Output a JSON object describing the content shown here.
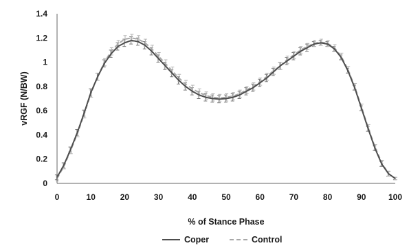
{
  "chart_data": {
    "type": "line",
    "title": "",
    "xlabel": "% of Stance Phase",
    "ylabel": "vRGF (N/BW)",
    "xlim": [
      0,
      100
    ],
    "ylim": [
      0,
      1.4
    ],
    "xticks": [
      "0",
      "10",
      "20",
      "30",
      "40",
      "50",
      "60",
      "70",
      "80",
      "90",
      "100"
    ],
    "yticks": [
      "0",
      "0.2",
      "0.4",
      "0.6",
      "0.8",
      "1",
      "1.2",
      "1.4"
    ],
    "grid": false,
    "legend": "bottom",
    "x": [
      0,
      2,
      4,
      6,
      8,
      10,
      12,
      14,
      16,
      18,
      20,
      22,
      24,
      26,
      28,
      30,
      32,
      34,
      36,
      38,
      40,
      42,
      44,
      46,
      48,
      50,
      52,
      54,
      56,
      58,
      60,
      62,
      64,
      66,
      68,
      70,
      72,
      74,
      76,
      78,
      80,
      82,
      84,
      86,
      88,
      90,
      92,
      94,
      96,
      98,
      100
    ],
    "series": [
      {
        "name": "Coper",
        "color": "#4d4d4d",
        "dash": "solid",
        "values": [
          0.05,
          0.15,
          0.28,
          0.42,
          0.58,
          0.75,
          0.88,
          0.99,
          1.07,
          1.13,
          1.16,
          1.18,
          1.17,
          1.14,
          1.09,
          1.03,
          0.97,
          0.91,
          0.85,
          0.8,
          0.76,
          0.73,
          0.71,
          0.7,
          0.695,
          0.7,
          0.71,
          0.73,
          0.76,
          0.79,
          0.83,
          0.87,
          0.92,
          0.97,
          1.01,
          1.05,
          1.09,
          1.12,
          1.15,
          1.16,
          1.15,
          1.11,
          1.04,
          0.93,
          0.79,
          0.62,
          0.45,
          0.29,
          0.16,
          0.08,
          0.04
        ],
        "error": [
          0.02,
          0.02,
          0.02,
          0.025,
          0.025,
          0.03,
          0.03,
          0.03,
          0.03,
          0.03,
          0.03,
          0.03,
          0.03,
          0.03,
          0.03,
          0.03,
          0.03,
          0.03,
          0.03,
          0.03,
          0.03,
          0.03,
          0.03,
          0.03,
          0.03,
          0.03,
          0.03,
          0.03,
          0.03,
          0.03,
          0.03,
          0.03,
          0.03,
          0.03,
          0.03,
          0.03,
          0.03,
          0.03,
          0.02,
          0.02,
          0.02,
          0.02,
          0.02,
          0.02,
          0.02,
          0.02,
          0.02,
          0.02,
          0.02,
          0.02,
          0.01
        ]
      },
      {
        "name": "Control",
        "color": "#a8a8a8",
        "dash": "dashed",
        "values": [
          0.04,
          0.14,
          0.27,
          0.41,
          0.57,
          0.74,
          0.88,
          1.0,
          1.09,
          1.15,
          1.19,
          1.2,
          1.19,
          1.16,
          1.11,
          1.05,
          0.99,
          0.93,
          0.87,
          0.82,
          0.78,
          0.75,
          0.725,
          0.71,
          0.705,
          0.71,
          0.72,
          0.74,
          0.77,
          0.8,
          0.84,
          0.88,
          0.93,
          0.97,
          1.02,
          1.06,
          1.1,
          1.13,
          1.155,
          1.165,
          1.155,
          1.12,
          1.05,
          0.94,
          0.8,
          0.63,
          0.46,
          0.3,
          0.17,
          0.08,
          0.04
        ],
        "error": [
          0.02,
          0.02,
          0.025,
          0.025,
          0.03,
          0.03,
          0.03,
          0.03,
          0.03,
          0.03,
          0.03,
          0.03,
          0.03,
          0.03,
          0.03,
          0.03,
          0.03,
          0.03,
          0.03,
          0.03,
          0.03,
          0.03,
          0.03,
          0.03,
          0.03,
          0.03,
          0.03,
          0.03,
          0.03,
          0.03,
          0.03,
          0.03,
          0.03,
          0.03,
          0.03,
          0.03,
          0.03,
          0.025,
          0.025,
          0.025,
          0.025,
          0.025,
          0.025,
          0.025,
          0.025,
          0.025,
          0.025,
          0.02,
          0.02,
          0.02,
          0.01
        ]
      }
    ]
  }
}
